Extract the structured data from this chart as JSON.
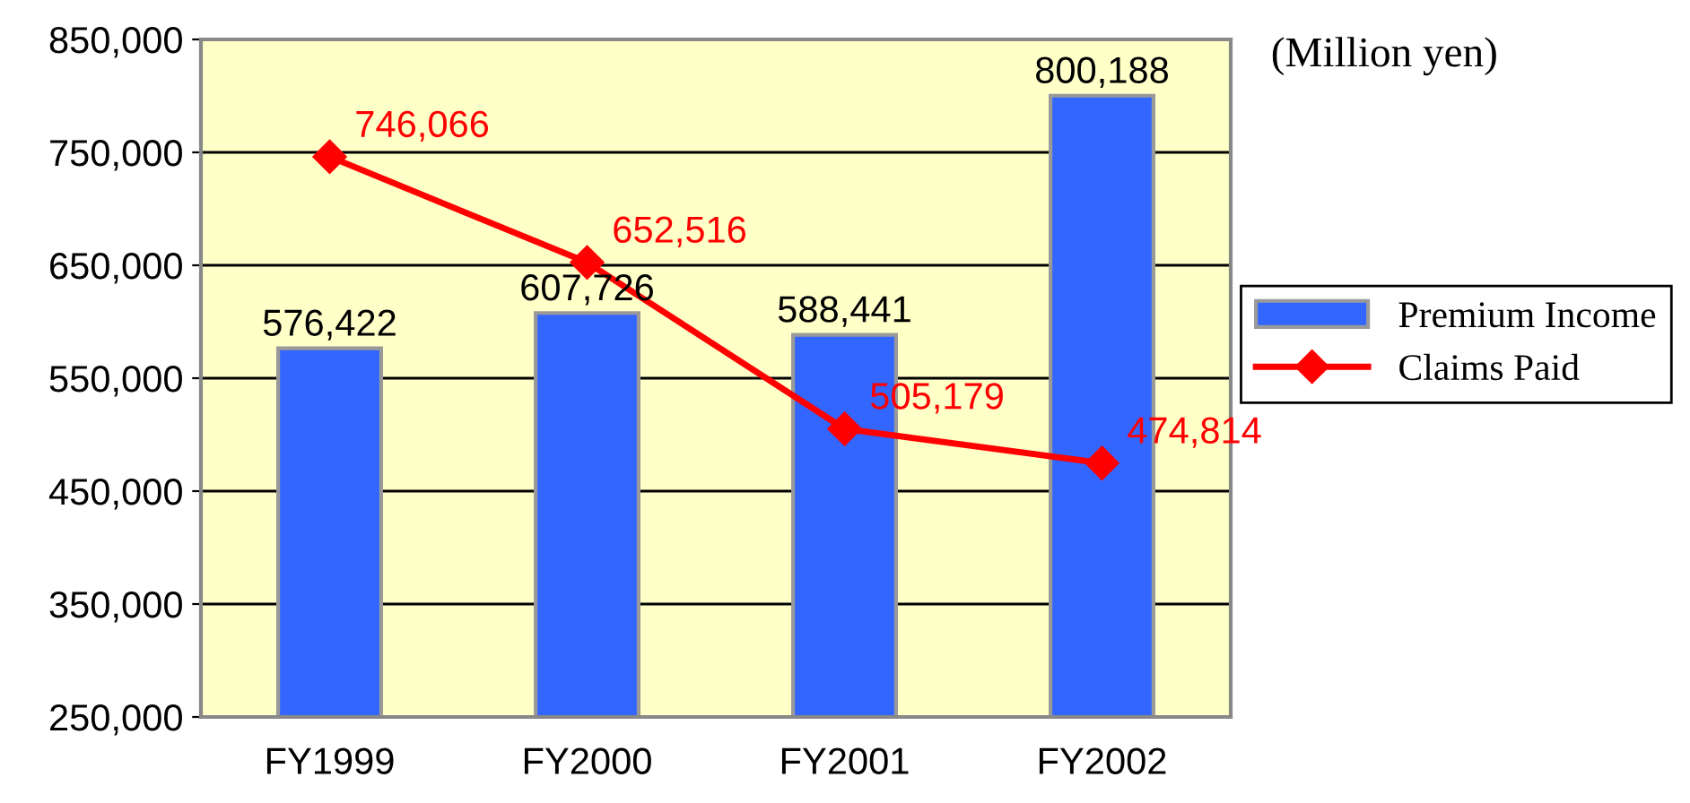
{
  "chart_data": {
    "type": "bar",
    "categories": [
      "FY1999",
      "FY2000",
      "FY2001",
      "FY2002"
    ],
    "series": [
      {
        "name": "Premium Income",
        "color": "#3366ff",
        "values": [
          576422,
          607726,
          588441,
          800188
        ],
        "value_labels": [
          "576,422",
          "607,726",
          "588,441",
          "800,188"
        ]
      },
      {
        "name": "Claims Paid",
        "type": "line",
        "color": "#ff0000",
        "values": [
          746066,
          652516,
          505179,
          474814
        ],
        "value_labels": [
          "746,066",
          "652,516",
          "505,179",
          "474,814"
        ]
      }
    ],
    "ylim": [
      250000,
      850000
    ],
    "yticks": [
      {
        "value": 250000,
        "label": "250,000"
      },
      {
        "value": 350000,
        "label": "350,000"
      },
      {
        "value": 450000,
        "label": "450,000"
      },
      {
        "value": 550000,
        "label": "550,000"
      },
      {
        "value": 650000,
        "label": "650,000"
      },
      {
        "value": 750000,
        "label": "750,000"
      },
      {
        "value": 850000,
        "label": "850,000"
      }
    ],
    "annotations": [
      "(Million yen)"
    ],
    "grid": "y",
    "legend": "right",
    "marker": "diamond"
  }
}
